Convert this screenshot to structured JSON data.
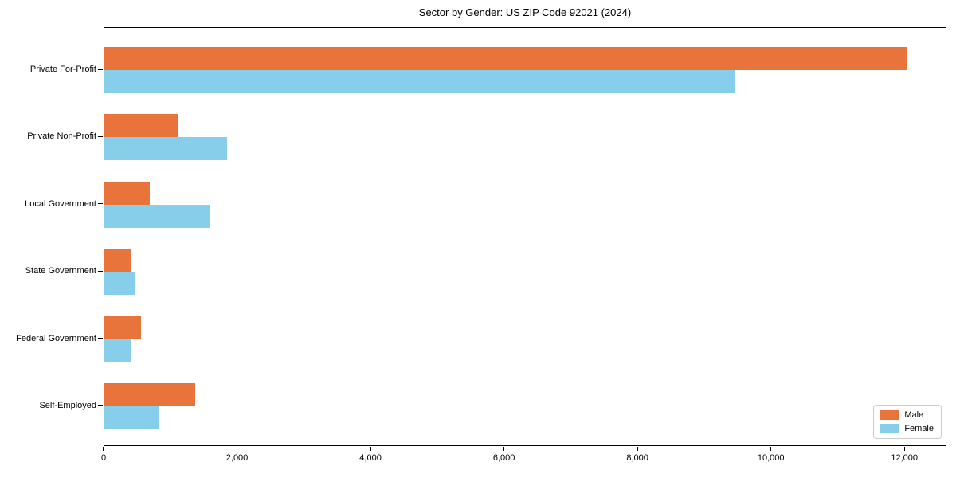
{
  "figure": {
    "title": "Sector by Gender: US ZIP Code 92021 (2024)"
  },
  "chart_data": {
    "type": "bar",
    "orientation": "horizontal",
    "title": "Sector by Gender: US ZIP Code 92021 (2024)",
    "categories": [
      "Private For-Profit",
      "Private Non-Profit",
      "Local Government",
      "State Government",
      "Federal Government",
      "Self-Employed"
    ],
    "series": [
      {
        "name": "Male",
        "color": "#e8743b",
        "values": [
          12030,
          1110,
          680,
          395,
          550,
          1360
        ]
      },
      {
        "name": "Female",
        "color": "#87ceeb",
        "values": [
          9450,
          1840,
          1570,
          450,
          390,
          810
        ]
      }
    ],
    "xlabel": "",
    "ylabel": "",
    "xlim": [
      0,
      12630
    ],
    "xticks": [
      0,
      2000,
      4000,
      6000,
      8000,
      10000,
      12000
    ],
    "xtick_labels": [
      "0",
      "2,000",
      "4,000",
      "6,000",
      "8,000",
      "10,000",
      "12,000"
    ],
    "grid": false,
    "legend": {
      "position": "lower right",
      "entries": [
        "Male",
        "Female"
      ]
    }
  },
  "colors": {
    "male": "#e8743b",
    "female": "#87ceeb",
    "frame": "#000000",
    "background": "#ffffff",
    "legend_border": "#cccccc"
  }
}
